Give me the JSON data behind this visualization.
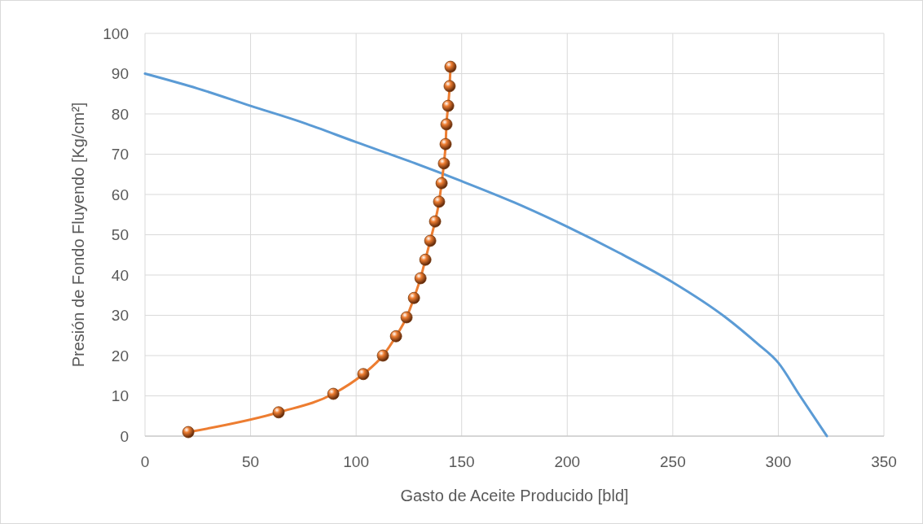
{
  "chart_data": {
    "type": "line",
    "xlabel": "Gasto de Aceite Producido [bld]",
    "ylabel": "Presión de Fondo Fluyendo [Kg/cm²]",
    "xlim": [
      0,
      350
    ],
    "ylim": [
      0,
      100
    ],
    "xticks": [
      0,
      50,
      100,
      150,
      200,
      250,
      300,
      350
    ],
    "yticks": [
      0,
      10,
      20,
      30,
      40,
      50,
      60,
      70,
      80,
      90,
      100
    ],
    "grid": true,
    "line_style": "solid",
    "series": [
      {
        "color": "#5b9bd5",
        "marker": "none",
        "x": [
          0,
          25,
          50,
          75,
          100,
          125,
          150,
          175,
          200,
          225,
          250,
          275,
          290,
          300,
          310,
          323
        ],
        "values": [
          90,
          86.3,
          82,
          77.8,
          73,
          68.3,
          63.3,
          58,
          52,
          45.4,
          38.2,
          29.5,
          23,
          18.2,
          10.2,
          0
        ]
      },
      {
        "color": "#ed7d31",
        "marker": "circle",
        "x": [
          20.5,
          63.3,
          89.2,
          103.4,
          112.7,
          118.9,
          123.9,
          127.4,
          130.5,
          132.8,
          135.1,
          137.4,
          139.3,
          140.5,
          141.6,
          142.4,
          142.8,
          143.6,
          144.3,
          144.7
        ],
        "values": [
          1,
          5.9,
          10.5,
          15.4,
          20,
          24.8,
          29.5,
          34.3,
          39.2,
          43.8,
          48.5,
          53.3,
          58.2,
          62.8,
          67.7,
          72.5,
          77.4,
          82,
          86.9,
          91.7
        ]
      }
    ]
  }
}
